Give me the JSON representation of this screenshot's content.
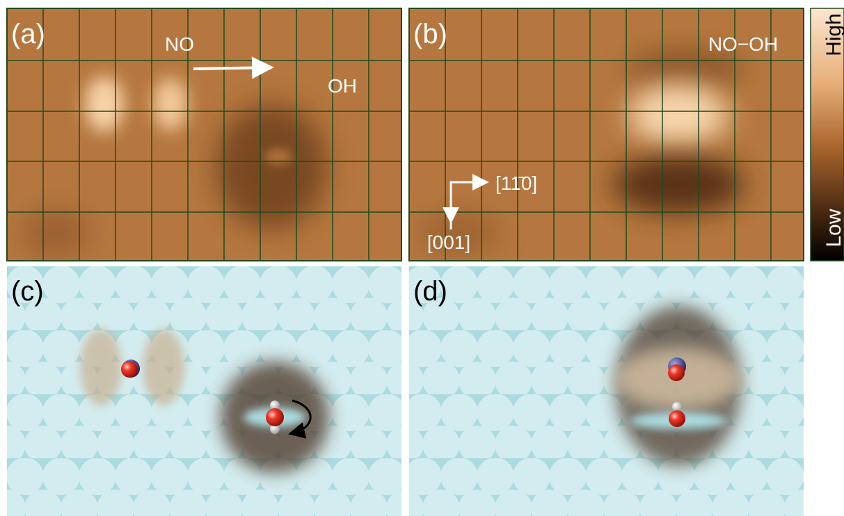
{
  "panel_labels": [
    "(a)",
    "(b)",
    "(c)",
    "(d)"
  ],
  "annotations": {
    "a": [
      "NO",
      "OH"
    ],
    "b": "NO−OH"
  },
  "directions": [
    "[11̄0]",
    "[001]"
  ],
  "colorbar": {
    "high": "High",
    "low": "Low"
  }
}
